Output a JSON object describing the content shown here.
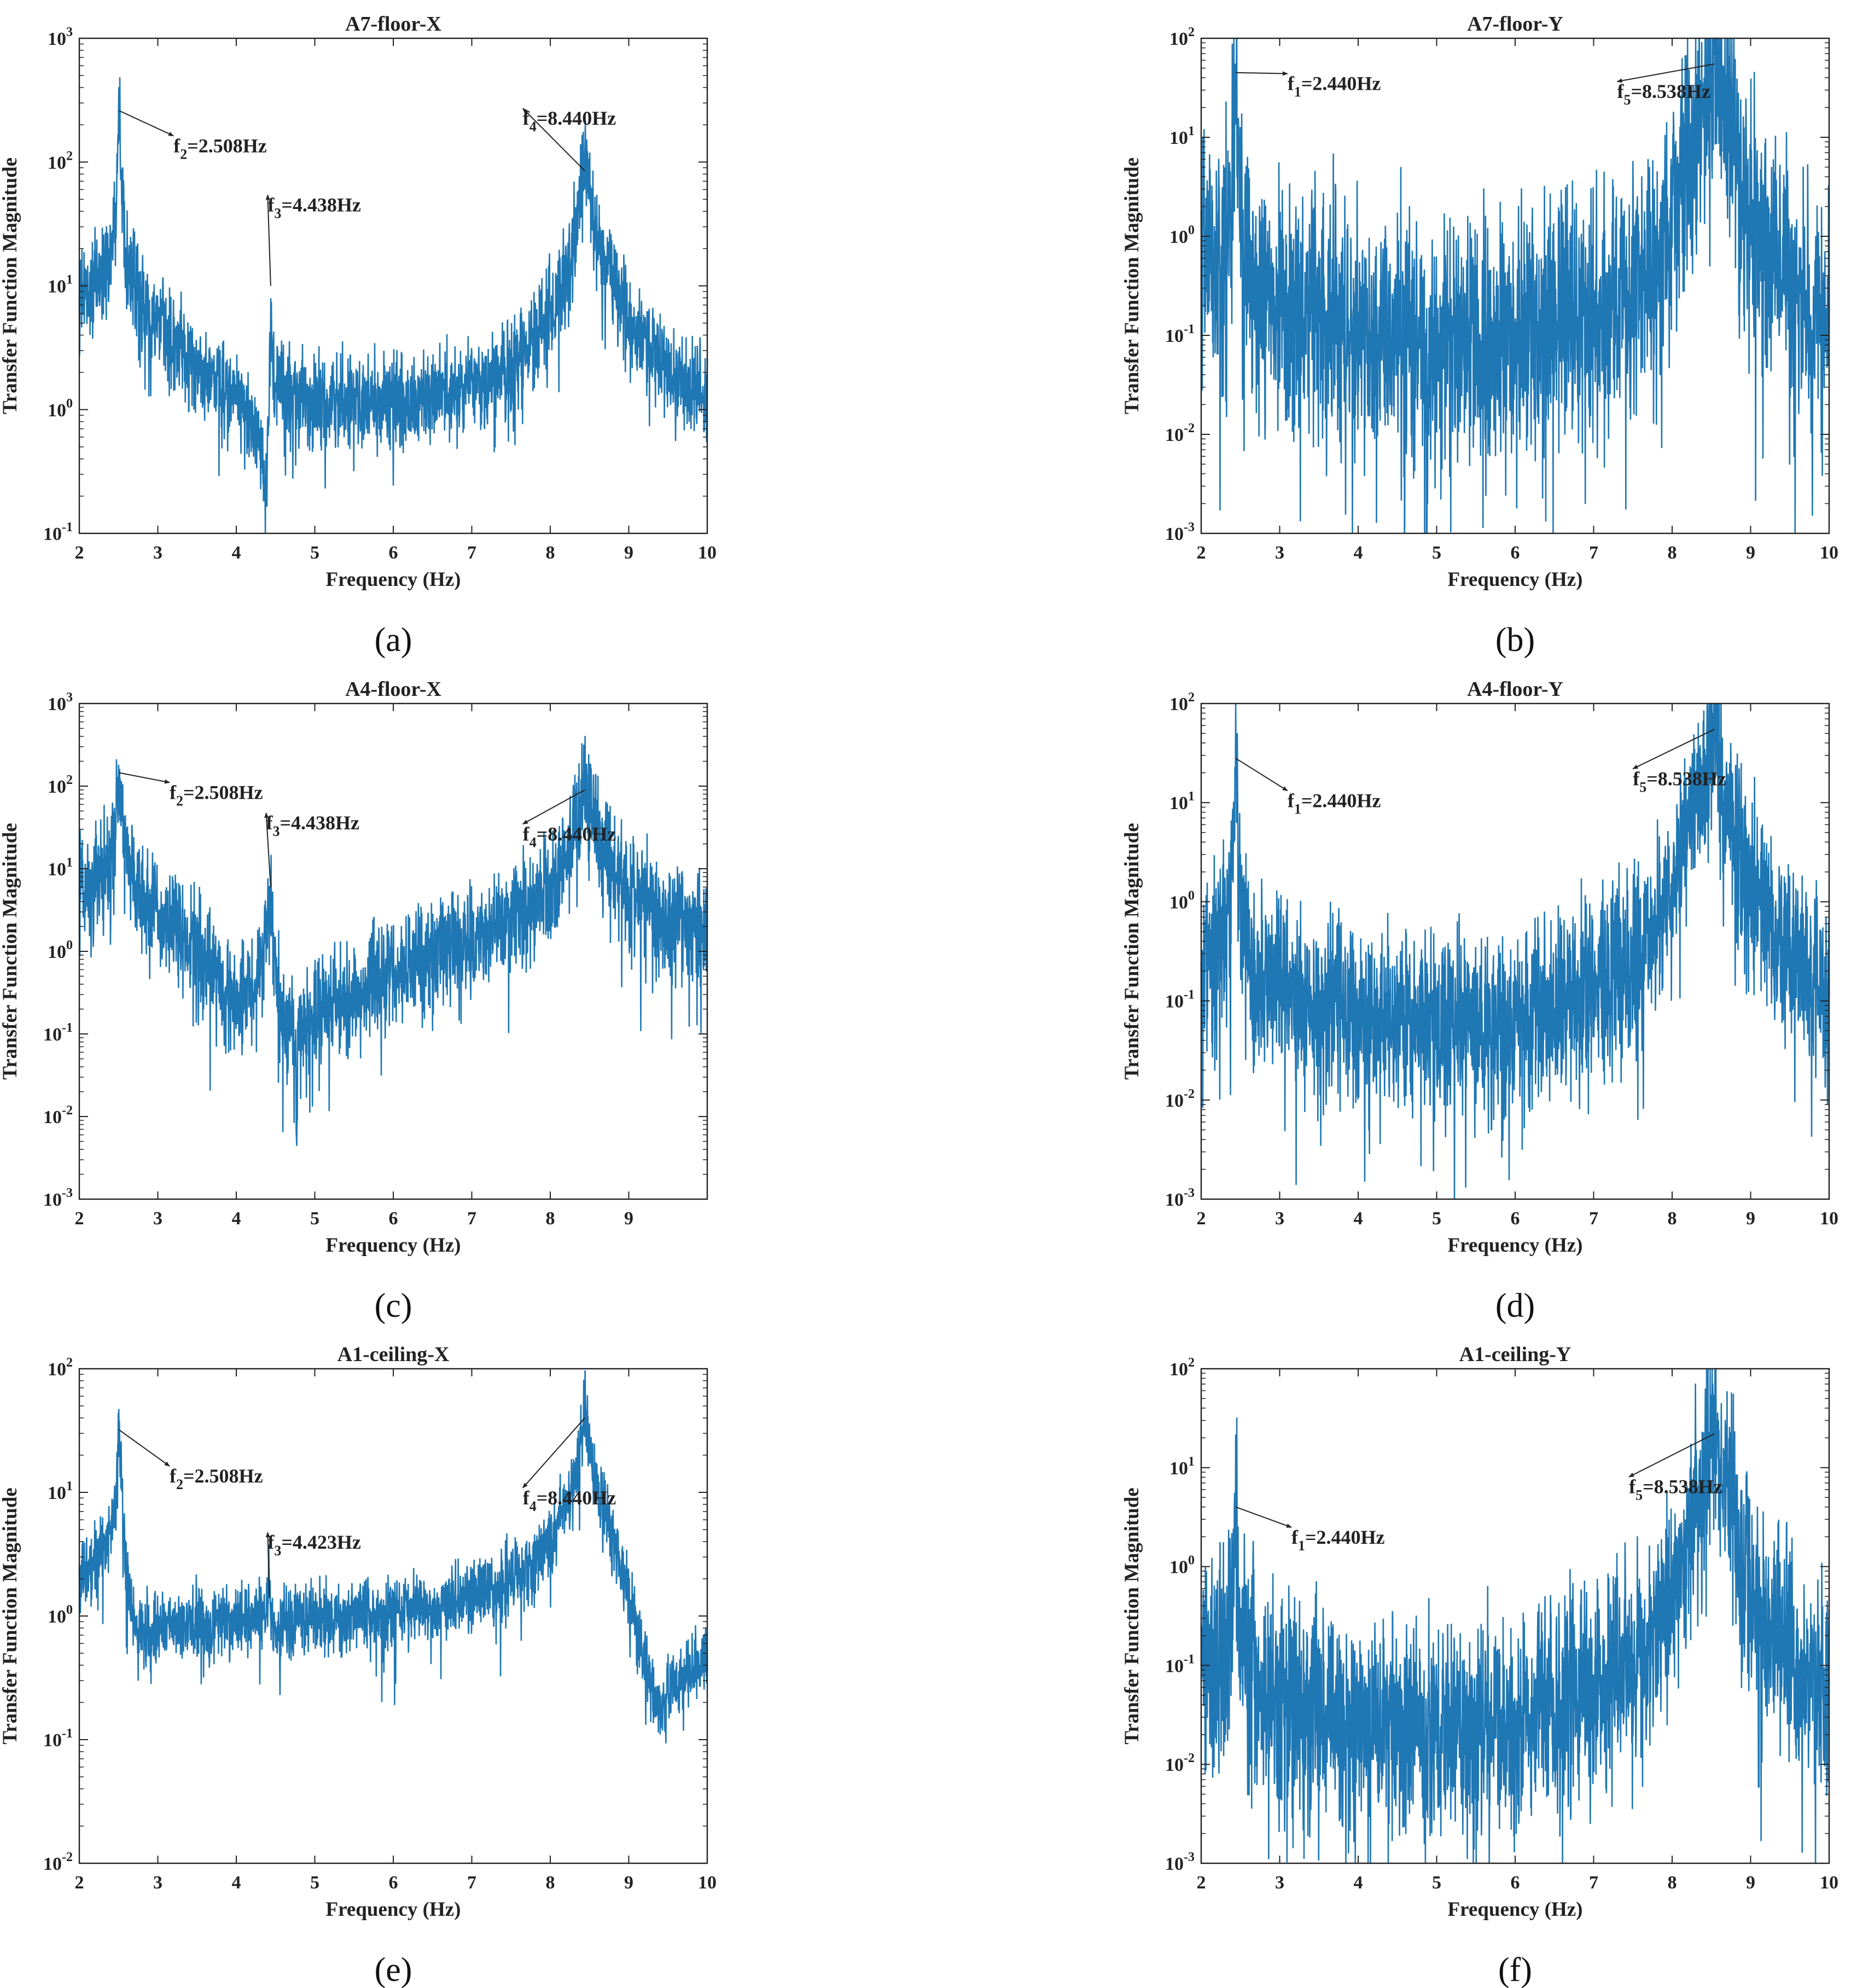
{
  "series_color": "#1f77b4",
  "chart_data": [
    {
      "panel_label": "(a)",
      "type": "line",
      "title": "A7-floor-X",
      "xlabel": "Frequency (Hz)",
      "ylabel": "Transfer Function Magnitude",
      "xlim": [
        2,
        10
      ],
      "xticks": [
        2,
        3,
        4,
        5,
        6,
        7,
        8,
        9,
        10
      ],
      "yscale": "log",
      "ylim_exp": [
        -1,
        3
      ],
      "grid": false,
      "baseline": [
        [
          2,
          7
        ],
        [
          2.45,
          12
        ],
        [
          2.9,
          5
        ],
        [
          3.5,
          2
        ],
        [
          4.0,
          1.2
        ],
        [
          4.3,
          0.55
        ],
        [
          4.41,
          0.8
        ],
        [
          4.55,
          1.5
        ],
        [
          5.0,
          1.15
        ],
        [
          6.0,
          1.05
        ],
        [
          7.0,
          1.35
        ],
        [
          7.6,
          2.2
        ],
        [
          8.0,
          4.5
        ],
        [
          8.25,
          12
        ],
        [
          8.75,
          12
        ],
        [
          9.0,
          4
        ],
        [
          9.5,
          2
        ],
        [
          10,
          1.15
        ]
      ],
      "peaks": [
        {
          "f": 2.508,
          "amp": 260,
          "gamma": 0.02
        },
        {
          "f": 4.438,
          "amp": 10,
          "gamma": 0.01
        },
        {
          "f": 8.44,
          "amp": 85,
          "gamma": 0.06
        }
      ],
      "dips": [
        {
          "f": 4.37,
          "depth": 0.2,
          "w": 0.05
        }
      ],
      "noise": 0.32,
      "annotations": [
        {
          "sym": "f",
          "sub": "2",
          "val": "=2.508Hz",
          "peak": [
            2.508,
            260
          ],
          "text": [
            3.2,
            120
          ]
        },
        {
          "sym": "f",
          "sub": "3",
          "val": "=4.438Hz",
          "peak": [
            4.438,
            10
          ],
          "text": [
            4.4,
            40
          ]
        },
        {
          "sym": "f",
          "sub": "4",
          "val": "=8.440Hz",
          "peak": [
            8.44,
            85
          ],
          "text": [
            7.65,
            200
          ]
        }
      ]
    },
    {
      "panel_label": "(b)",
      "type": "line",
      "title": "A7-floor-Y",
      "xlabel": "Frequency (Hz)",
      "ylabel": "Transfer Function Magnitude",
      "xlim": [
        2,
        10
      ],
      "xticks": [
        2,
        3,
        4,
        5,
        6,
        7,
        8,
        9,
        10
      ],
      "yscale": "log",
      "ylim_exp": [
        -3,
        2
      ],
      "grid": false,
      "baseline": [
        [
          2,
          0.6
        ],
        [
          2.6,
          0.25
        ],
        [
          4.0,
          0.12
        ],
        [
          5.0,
          0.07
        ],
        [
          6.0,
          0.07
        ],
        [
          7.0,
          0.07
        ],
        [
          7.6,
          0.12
        ],
        [
          8.0,
          0.6
        ],
        [
          8.3,
          8
        ],
        [
          8.75,
          8
        ],
        [
          9.0,
          0.6
        ],
        [
          9.5,
          0.1
        ],
        [
          10,
          0.04
        ]
      ],
      "peaks": [
        {
          "f": 2.44,
          "amp": 45,
          "gamma": 0.012
        },
        {
          "f": 8.538,
          "amp": 55,
          "gamma": 0.06
        }
      ],
      "dips": [],
      "noise": 1.05,
      "annotations": [
        {
          "sym": "f",
          "sub": "1",
          "val": "=2.440Hz",
          "peak": [
            2.44,
            45
          ],
          "text": [
            3.1,
            30
          ]
        },
        {
          "sym": "f",
          "sub": "5",
          "val": "=8.538Hz",
          "peak": [
            8.538,
            55
          ],
          "text": [
            7.3,
            25
          ]
        }
      ]
    },
    {
      "panel_label": "(c)",
      "type": "line",
      "title": "A4-floor-X",
      "xlabel": "Frequency (Hz)",
      "ylabel": "Transfer Function Magnitude",
      "xlim": [
        2,
        10
      ],
      "xticks": [
        2,
        3,
        4,
        5,
        6,
        7,
        8,
        9
      ],
      "yscale": "log",
      "ylim_exp": [
        -3,
        3
      ],
      "grid": false,
      "baseline": [
        [
          2,
          5
        ],
        [
          2.45,
          10
        ],
        [
          2.9,
          3
        ],
        [
          3.5,
          1
        ],
        [
          3.9,
          0.25
        ],
        [
          4.25,
          0.3
        ],
        [
          4.41,
          1.2
        ],
        [
          4.6,
          0.12
        ],
        [
          4.75,
          0.06
        ],
        [
          5.0,
          0.15
        ],
        [
          6.0,
          0.5
        ],
        [
          7.0,
          1.2
        ],
        [
          7.6,
          2.5
        ],
        [
          8.1,
          6
        ],
        [
          8.3,
          15
        ],
        [
          8.75,
          12
        ],
        [
          9.0,
          4
        ],
        [
          9.5,
          2.2
        ],
        [
          10,
          1.4
        ]
      ],
      "peaks": [
        {
          "f": 2.508,
          "amp": 145,
          "gamma": 0.02
        },
        {
          "f": 4.438,
          "amp": 6,
          "gamma": 0.012
        },
        {
          "f": 8.44,
          "amp": 90,
          "gamma": 0.06
        }
      ],
      "dips": [
        {
          "f": 4.77,
          "depth": 0.003,
          "w": 0.01
        }
      ],
      "noise": 0.55,
      "annotations": [
        {
          "sym": "f",
          "sub": "2",
          "val": "=2.508Hz",
          "peak": [
            2.508,
            145
          ],
          "text": [
            3.15,
            70
          ]
        },
        {
          "sym": "f",
          "sub": "3",
          "val": "=4.438Hz",
          "peak": [
            4.438,
            6
          ],
          "text": [
            4.38,
            30
          ]
        },
        {
          "sym": "f",
          "sub": "4",
          "val": "=8.440Hz",
          "peak": [
            8.44,
            90
          ],
          "text": [
            7.65,
            22
          ]
        }
      ]
    },
    {
      "panel_label": "(d)",
      "type": "line",
      "title": "A4-floor-Y",
      "xlabel": "Frequency (Hz)",
      "ylabel": "Transfer Function Magnitude",
      "xlim": [
        2,
        10
      ],
      "xticks": [
        2,
        3,
        4,
        5,
        6,
        7,
        8,
        9,
        10
      ],
      "yscale": "log",
      "ylim_exp": [
        -3,
        2
      ],
      "grid": false,
      "baseline": [
        [
          2,
          0.25
        ],
        [
          2.6,
          0.15
        ],
        [
          4.0,
          0.06
        ],
        [
          5.0,
          0.045
        ],
        [
          6.0,
          0.035
        ],
        [
          7.0,
          0.05
        ],
        [
          7.6,
          0.1
        ],
        [
          8.0,
          0.5
        ],
        [
          8.3,
          6
        ],
        [
          8.75,
          6
        ],
        [
          9.0,
          0.5
        ],
        [
          9.5,
          0.08
        ],
        [
          10,
          0.03
        ]
      ],
      "peaks": [
        {
          "f": 2.44,
          "amp": 28,
          "gamma": 0.012
        },
        {
          "f": 8.538,
          "amp": 55,
          "gamma": 0.06
        }
      ],
      "dips": [],
      "noise": 0.75,
      "annotations": [
        {
          "sym": "f",
          "sub": "1",
          "val": "=2.440Hz",
          "peak": [
            2.44,
            28
          ],
          "text": [
            3.1,
            9
          ]
        },
        {
          "sym": "f",
          "sub": "5",
          "val": "=8.538Hz",
          "peak": [
            8.538,
            55
          ],
          "text": [
            7.5,
            15
          ]
        }
      ]
    },
    {
      "panel_label": "(e)",
      "type": "line",
      "title": "A1-ceiling-X",
      "xlabel": "Frequency (Hz)",
      "ylabel": "Transfer Function Magnitude",
      "xlim": [
        2,
        10
      ],
      "xticks": [
        2,
        3,
        4,
        5,
        6,
        7,
        8,
        9,
        10
      ],
      "yscale": "log",
      "ylim_exp": [
        -2,
        2
      ],
      "grid": false,
      "baseline": [
        [
          2,
          2
        ],
        [
          2.45,
          4
        ],
        [
          2.6,
          0.8
        ],
        [
          2.75,
          0.5
        ],
        [
          3.0,
          0.7
        ],
        [
          3.5,
          0.85
        ],
        [
          4.3,
          1.0
        ],
        [
          4.4,
          1.2
        ],
        [
          4.44,
          0.7
        ],
        [
          4.6,
          0.9
        ],
        [
          5.5,
          1.0
        ],
        [
          6.5,
          1.15
        ],
        [
          7.3,
          1.5
        ],
        [
          7.8,
          2.3
        ],
        [
          8.2,
          6
        ],
        [
          8.7,
          6
        ],
        [
          9.0,
          1
        ],
        [
          9.2,
          0.2
        ],
        [
          9.37,
          0.03
        ],
        [
          9.5,
          0.15
        ],
        [
          9.8,
          0.3
        ],
        [
          10,
          0.4
        ]
      ],
      "peaks": [
        {
          "f": 2.508,
          "amp": 32,
          "gamma": 0.02
        },
        {
          "f": 4.423,
          "amp": 1.4,
          "gamma": 0.008
        },
        {
          "f": 8.44,
          "amp": 40,
          "gamma": 0.06
        }
      ],
      "dips": [],
      "noise": 0.25,
      "annotations": [
        {
          "sym": "f",
          "sub": "2",
          "val": "=2.508Hz",
          "peak": [
            2.508,
            32
          ],
          "text": [
            3.15,
            12
          ]
        },
        {
          "sym": "f",
          "sub": "3",
          "val": "=4.423Hz",
          "peak": [
            4.423,
            1.4
          ],
          "text": [
            4.4,
            3.5
          ]
        },
        {
          "sym": "f",
          "sub": "4",
          "val": "=8.440Hz",
          "peak": [
            8.44,
            40
          ],
          "text": [
            7.65,
            8
          ]
        }
      ]
    },
    {
      "panel_label": "(f)",
      "type": "line",
      "title": "A1-ceiling-Y",
      "xlabel": "Frequency (Hz)",
      "ylabel": "Transfer Function Magnitude",
      "xlim": [
        2,
        10
      ],
      "xticks": [
        2,
        3,
        4,
        5,
        6,
        7,
        8,
        9,
        10
      ],
      "yscale": "log",
      "ylim_exp": [
        -3,
        2
      ],
      "grid": false,
      "baseline": [
        [
          2,
          0.12
        ],
        [
          2.6,
          0.06
        ],
        [
          3.5,
          0.03
        ],
        [
          4.5,
          0.02
        ],
        [
          5.5,
          0.015
        ],
        [
          6.5,
          0.02
        ],
        [
          7.3,
          0.03
        ],
        [
          7.8,
          0.08
        ],
        [
          8.1,
          0.4
        ],
        [
          8.3,
          3
        ],
        [
          8.75,
          3
        ],
        [
          9.0,
          0.3
        ],
        [
          9.5,
          0.05
        ],
        [
          10,
          0.02
        ]
      ],
      "peaks": [
        {
          "f": 2.44,
          "amp": 4,
          "gamma": 0.012
        },
        {
          "f": 8.538,
          "amp": 22,
          "gamma": 0.06
        }
      ],
      "dips": [],
      "noise": 0.9,
      "annotations": [
        {
          "sym": "f",
          "sub": "1",
          "val": "=2.440Hz",
          "peak": [
            2.44,
            4
          ],
          "text": [
            3.15,
            1.7
          ]
        },
        {
          "sym": "f",
          "sub": "5",
          "val": "=8.538Hz",
          "peak": [
            8.538,
            22
          ],
          "text": [
            7.45,
            5.5
          ]
        }
      ]
    }
  ]
}
